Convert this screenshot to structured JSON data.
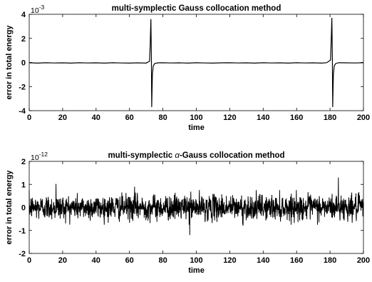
{
  "chart_data": [
    {
      "type": "line",
      "title": "multi-symplectic Gauss collocation method",
      "xlabel": "time",
      "ylabel": "error in total energy",
      "xlim": [
        0,
        200
      ],
      "ylim": [
        -4,
        4
      ],
      "y_scale_factor": "10",
      "y_scale_exponent": "-3",
      "xticks": [
        "0",
        "20",
        "40",
        "60",
        "80",
        "100",
        "120",
        "140",
        "160",
        "180",
        "200"
      ],
      "yticks": [
        "-4",
        "-2",
        "0",
        "2",
        "4"
      ],
      "grid": false,
      "line_color": "#000000",
      "series": [
        {
          "x": [
            0,
            5,
            10,
            15,
            20,
            25,
            30,
            35,
            40,
            45,
            50,
            55,
            60,
            65,
            70,
            72.0,
            72.4,
            72.8,
            73.1,
            73.3,
            73.7,
            74.2,
            75.0,
            77,
            80,
            85,
            90,
            95,
            100,
            105,
            110,
            115,
            120,
            125,
            130,
            135,
            140,
            145,
            150,
            155,
            160,
            165,
            170,
            175,
            178,
            180.3,
            180.7,
            181.1,
            181.4,
            181.6,
            182.0,
            182.5,
            183.3,
            185,
            190,
            195,
            200
          ],
          "y": [
            -0.02,
            -0.05,
            -0.02,
            -0.04,
            -0.03,
            -0.05,
            -0.02,
            -0.04,
            -0.03,
            -0.05,
            -0.02,
            -0.04,
            -0.05,
            -0.03,
            -0.05,
            0.1,
            1.5,
            3.6,
            0.5,
            -3.7,
            -1.0,
            -0.3,
            -0.1,
            -0.03,
            -0.02,
            -0.04,
            -0.03,
            -0.05,
            -0.02,
            -0.04,
            -0.05,
            -0.03,
            -0.02,
            -0.04,
            -0.03,
            -0.05,
            -0.02,
            -0.04,
            -0.03,
            -0.05,
            -0.02,
            -0.04,
            -0.03,
            -0.05,
            -0.02,
            0.2,
            1.8,
            3.7,
            0.4,
            -3.7,
            -1.0,
            -0.3,
            -0.1,
            -0.02,
            -0.03,
            -0.04,
            -0.02
          ]
        }
      ]
    },
    {
      "type": "line",
      "title": "multi-symplectic α-Gauss collocation method",
      "title_prefix": "multi-symplectic ",
      "title_symbol": "α",
      "title_suffix": "-Gauss collocation method",
      "xlabel": "time",
      "ylabel": "error in total energy",
      "xlim": [
        0,
        200
      ],
      "ylim": [
        -2,
        2
      ],
      "y_scale_factor": "10",
      "y_scale_exponent": "-12",
      "xticks": [
        "0",
        "20",
        "40",
        "60",
        "80",
        "100",
        "120",
        "140",
        "160",
        "180",
        "200"
      ],
      "yticks": [
        "-2",
        "-1",
        "0",
        "1",
        "2"
      ],
      "grid": false,
      "line_color": "#000000",
      "series": [
        {
          "noise": {
            "samples": 1600,
            "typical_amplitude": 0.27,
            "typical_range": [
              -0.6,
              0.6
            ],
            "spikes": [
              {
                "x": 16,
                "y": 1.02
              },
              {
                "x": 96,
                "y": -1.2
              },
              {
                "x": 185,
                "y": 1.3
              },
              {
                "x": 63,
                "y": 0.9
              },
              {
                "x": 128,
                "y": -0.8
              }
            ]
          }
        }
      ]
    }
  ]
}
